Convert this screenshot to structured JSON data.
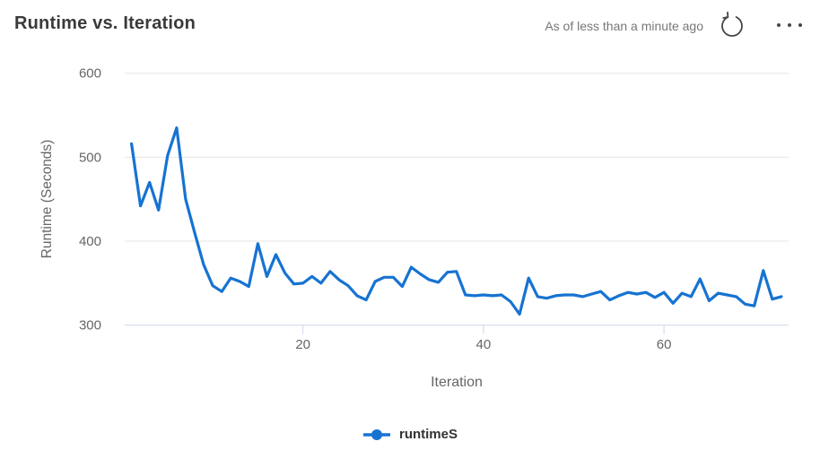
{
  "header": {
    "title": "Runtime vs. Iteration",
    "as_of": "As of less than a minute ago",
    "refresh_icon": "refresh-circular-arrow",
    "more_icon": "ellipsis-horizontal"
  },
  "colors": {
    "series_blue": "#1673d2",
    "title_text": "#3b3a39",
    "muted_text": "#797775",
    "axis_text": "#666666",
    "gridline": "#e6e6e6",
    "axis_line": "#ccd6eb",
    "legend_text": "#333333",
    "icon": "#484644"
  },
  "chart_data": {
    "type": "line",
    "title": "Runtime vs. Iteration",
    "xlabel": "Iteration",
    "ylabel": "Runtime (Seconds)",
    "x_ticks": [
      20,
      40,
      60
    ],
    "y_ticks": [
      300,
      400,
      500,
      600
    ],
    "xlim": [
      0,
      74
    ],
    "ylim": [
      300,
      620
    ],
    "grid": "horizontal-only",
    "legend_position": "bottom-center",
    "series": [
      {
        "name": "runtimeS",
        "color": "#1673d2",
        "marker": "circle",
        "x_start": 1,
        "x_step": 1,
        "values": [
          516,
          442,
          470,
          437,
          502,
          535,
          450,
          410,
          372,
          347,
          340,
          356,
          352,
          346,
          397,
          358,
          384,
          362,
          349,
          350,
          358,
          350,
          364,
          354,
          347,
          335,
          330,
          352,
          357,
          357,
          346,
          369,
          361,
          354,
          351,
          363,
          364,
          336,
          335,
          336,
          335,
          336,
          328,
          313,
          356,
          334,
          332,
          335,
          336,
          336,
          334,
          337,
          340,
          330,
          335,
          339,
          337,
          339,
          333,
          339,
          326,
          338,
          334,
          355,
          329,
          338,
          336,
          334,
          325,
          323,
          365,
          331,
          334
        ]
      }
    ]
  },
  "legend": {
    "items": [
      {
        "label": "runtimeS"
      }
    ]
  }
}
